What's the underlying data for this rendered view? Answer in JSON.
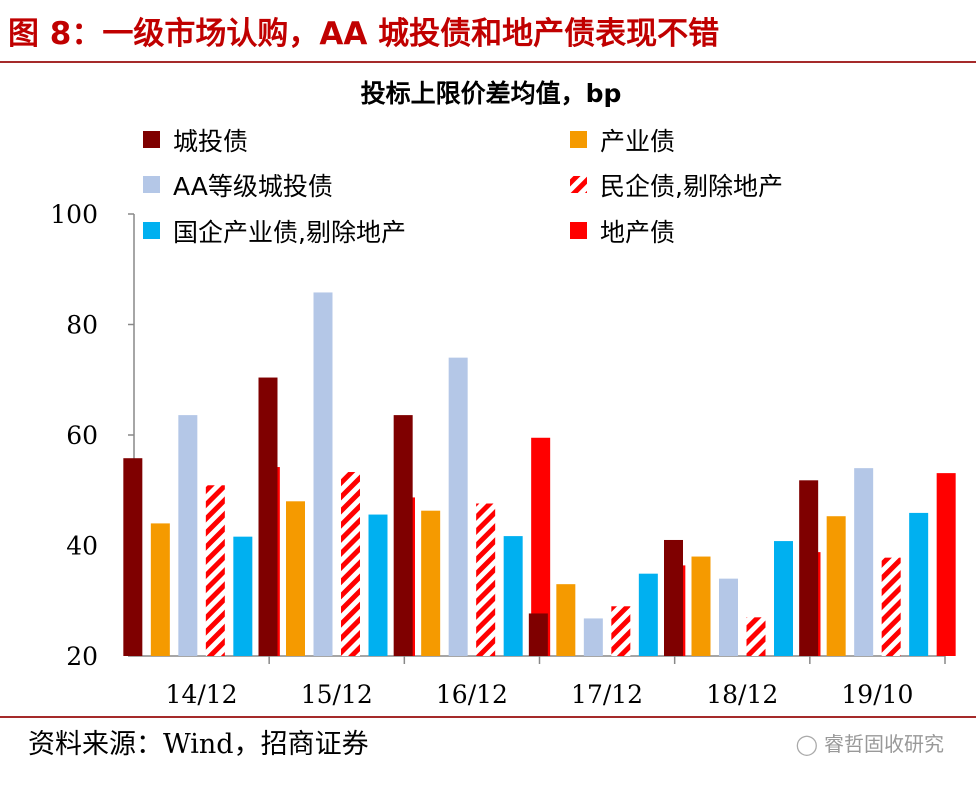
{
  "header": {
    "title": "图 8：一级市场认购，AA 城投债和地产债表现不错"
  },
  "footer": {
    "source": "资料来源：Wind，招商证券",
    "watermark": "睿哲固收研究",
    "watermark_icon": "wechat-icon"
  },
  "chart_data": {
    "type": "bar",
    "title": "投标上限价差均值，bp",
    "categories": [
      "14/12",
      "15/12",
      "16/12",
      "17/12",
      "18/12",
      "19/10"
    ],
    "ylim": [
      20,
      100
    ],
    "yticks": [
      20,
      40,
      60,
      80,
      100
    ],
    "grid": false,
    "legend_position": "top",
    "series": [
      {
        "name": "城投债",
        "color": "#7f0000",
        "pattern": "solid",
        "values": [
          55.8,
          70.4,
          63.6,
          27.7,
          41.0,
          51.8
        ]
      },
      {
        "name": "产业债",
        "color": "#f59a00",
        "pattern": "solid",
        "values": [
          44.0,
          48.0,
          46.3,
          33.0,
          38.0,
          45.3
        ]
      },
      {
        "name": "AA等级城投债",
        "color": "#b4c7e7",
        "pattern": "solid",
        "values": [
          63.6,
          85.8,
          74.0,
          26.8,
          34.0,
          54.0
        ]
      },
      {
        "name": "民企债,剔除地产",
        "color": "#ff0000",
        "pattern": "hatched",
        "values": [
          50.9,
          53.3,
          47.6,
          29.0,
          27.0,
          37.8
        ]
      },
      {
        "name": "国企产业债,剔除地产",
        "color": "#00b0f0",
        "pattern": "solid",
        "values": [
          41.6,
          45.6,
          41.7,
          34.9,
          40.8,
          45.9
        ]
      },
      {
        "name": "地产债",
        "color": "#ff0000",
        "pattern": "solid",
        "values": [
          54.2,
          48.7,
          59.5,
          36.4,
          38.8,
          53.1
        ]
      }
    ]
  }
}
